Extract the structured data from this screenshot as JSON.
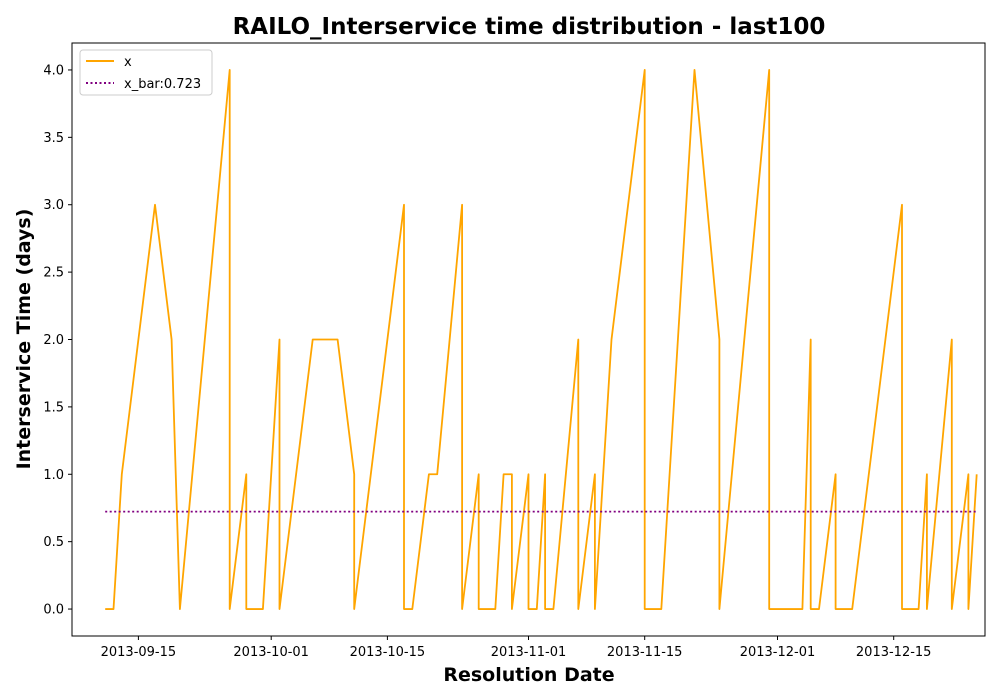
{
  "chart_data": {
    "type": "line",
    "title": "RAILO_Interservice time distribution - last100",
    "xlabel": "Resolution Date",
    "ylabel": "Interservice Time (days)",
    "x_ticks": [
      "2013-09-15",
      "2013-10-01",
      "2013-10-15",
      "2013-11-01",
      "2013-11-15",
      "2013-12-01",
      "2013-12-15"
    ],
    "y_ticks": [
      "0.0",
      "0.5",
      "1.0",
      "1.5",
      "2.0",
      "2.5",
      "3.0",
      "3.5",
      "4.0"
    ],
    "xlim": [
      "2013-09-07",
      "2013-12-26"
    ],
    "ylim": [
      -0.2,
      4.2
    ],
    "grid": false,
    "legend_position": "top-left",
    "series": [
      {
        "name": "x",
        "color": "#ffa500",
        "style": "solid",
        "points": [
          [
            "2013-09-11",
            0
          ],
          [
            "2013-09-12",
            0
          ],
          [
            "2013-09-13",
            1
          ],
          [
            "2013-09-17",
            3
          ],
          [
            "2013-09-19",
            2
          ],
          [
            "2013-09-20",
            0
          ],
          [
            "2013-09-26",
            4
          ],
          [
            "2013-09-26",
            0
          ],
          [
            "2013-09-28",
            1
          ],
          [
            "2013-09-28",
            0
          ],
          [
            "2013-09-30",
            0
          ],
          [
            "2013-10-02",
            2
          ],
          [
            "2013-10-02",
            0
          ],
          [
            "2013-10-06",
            2
          ],
          [
            "2013-10-09",
            2
          ],
          [
            "2013-10-11",
            1
          ],
          [
            "2013-10-11",
            0
          ],
          [
            "2013-10-17",
            3
          ],
          [
            "2013-10-17",
            0
          ],
          [
            "2013-10-18",
            0
          ],
          [
            "2013-10-20",
            1
          ],
          [
            "2013-10-21",
            1
          ],
          [
            "2013-10-24",
            3
          ],
          [
            "2013-10-24",
            0
          ],
          [
            "2013-10-26",
            1
          ],
          [
            "2013-10-26",
            0
          ],
          [
            "2013-10-28",
            0
          ],
          [
            "2013-10-29",
            1
          ],
          [
            "2013-10-30",
            1
          ],
          [
            "2013-10-30",
            0
          ],
          [
            "2013-11-01",
            1
          ],
          [
            "2013-11-01",
            0
          ],
          [
            "2013-11-02",
            0
          ],
          [
            "2013-11-03",
            1
          ],
          [
            "2013-11-03",
            0
          ],
          [
            "2013-11-04",
            0
          ],
          [
            "2013-11-07",
            2
          ],
          [
            "2013-11-07",
            0
          ],
          [
            "2013-11-09",
            1
          ],
          [
            "2013-11-09",
            0
          ],
          [
            "2013-11-11",
            2
          ],
          [
            "2013-11-15",
            4
          ],
          [
            "2013-11-15",
            0
          ],
          [
            "2013-11-17",
            0
          ],
          [
            "2013-11-21",
            4
          ],
          [
            "2013-11-24",
            2
          ],
          [
            "2013-11-24",
            0
          ],
          [
            "2013-11-30",
            4
          ],
          [
            "2013-11-30",
            0
          ],
          [
            "2013-12-04",
            0
          ],
          [
            "2013-12-05",
            2
          ],
          [
            "2013-12-05",
            0
          ],
          [
            "2013-12-06",
            0
          ],
          [
            "2013-12-08",
            1
          ],
          [
            "2013-12-08",
            0
          ],
          [
            "2013-12-10",
            0
          ],
          [
            "2013-12-16",
            3
          ],
          [
            "2013-12-16",
            0
          ],
          [
            "2013-12-18",
            0
          ],
          [
            "2013-12-19",
            1
          ],
          [
            "2013-12-19",
            0
          ],
          [
            "2013-12-22",
            2
          ],
          [
            "2013-12-22",
            0
          ],
          [
            "2013-12-24",
            1
          ],
          [
            "2013-12-24",
            0
          ],
          [
            "2013-12-25",
            1
          ]
        ]
      },
      {
        "name": "x_bar:0.723",
        "color": "#800080",
        "style": "dotted",
        "points": [
          [
            "2013-09-11",
            0.723
          ],
          [
            "2013-12-25",
            0.723
          ]
        ]
      }
    ]
  }
}
